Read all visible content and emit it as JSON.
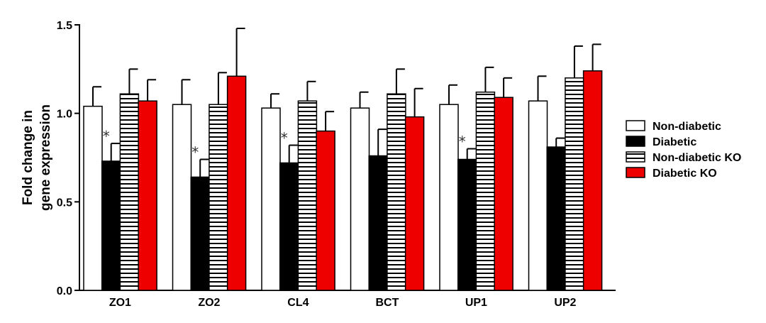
{
  "chart_data": {
    "type": "bar",
    "ylabel_lines": [
      "Fold change in",
      "gene expression"
    ],
    "categories": [
      "ZO1",
      "ZO2",
      "CL4",
      "BCT",
      "UP1",
      "UP2"
    ],
    "yticks": [
      "0.0",
      "0.5",
      "1.0",
      "1.5"
    ],
    "ylim": [
      0,
      1.5
    ],
    "legend_position": "right",
    "series": [
      {
        "name": "Non-diabetic",
        "fill": "white",
        "values": [
          1.04,
          1.05,
          1.03,
          1.03,
          1.05,
          1.07
        ],
        "errors": [
          0.11,
          0.14,
          0.08,
          0.09,
          0.11,
          0.14
        ]
      },
      {
        "name": "Diabetic",
        "fill": "black",
        "values": [
          0.73,
          0.64,
          0.72,
          0.76,
          0.74,
          0.81
        ],
        "errors": [
          0.1,
          0.1,
          0.1,
          0.15,
          0.06,
          0.05
        ]
      },
      {
        "name": "Non-diabetic KO",
        "fill": "stripes",
        "values": [
          1.11,
          1.05,
          1.07,
          1.11,
          1.12,
          1.2
        ],
        "errors": [
          0.14,
          0.18,
          0.11,
          0.14,
          0.14,
          0.18
        ]
      },
      {
        "name": "Diabetic KO",
        "fill": "red",
        "values": [
          1.07,
          1.21,
          0.9,
          0.98,
          1.09,
          1.24
        ],
        "errors": [
          0.12,
          0.27,
          0.11,
          0.16,
          0.11,
          0.15
        ]
      }
    ],
    "annotations": [
      {
        "category": "ZO1",
        "series": "Diabetic",
        "text": "*"
      },
      {
        "category": "ZO2",
        "series": "Diabetic",
        "text": "*"
      },
      {
        "category": "CL4",
        "series": "Diabetic",
        "text": "*"
      },
      {
        "category": "UP1",
        "series": "Diabetic",
        "text": "*"
      }
    ],
    "colors": {
      "red": "#ee0000",
      "black": "#000000",
      "white": "#ffffff"
    }
  }
}
